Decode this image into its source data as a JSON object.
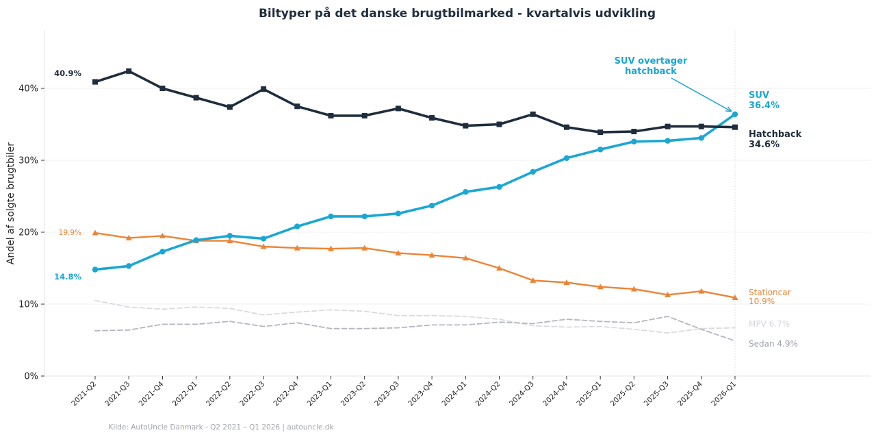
{
  "chart_data": {
    "type": "line",
    "title": "Biltyper på det danske brugtbilmarked - kvartalvis udvikling",
    "xlabel": "",
    "ylabel": "Andel af solgte brugtbiler",
    "ylim": [
      0,
      48
    ],
    "yticks": [
      0,
      10,
      20,
      30,
      40
    ],
    "ytick_labels": [
      "0%",
      "10%",
      "20%",
      "30%",
      "40%"
    ],
    "grid": "horizontal",
    "categories": [
      "2021-Q2",
      "2021-Q3",
      "2021-Q4",
      "2022-Q1",
      "2022-Q2",
      "2022-Q3",
      "2022-Q4",
      "2023-Q1",
      "2023-Q2",
      "2023-Q3",
      "2023-Q4",
      "2024-Q1",
      "2024-Q2",
      "2024-Q3",
      "2024-Q4",
      "2025-Q1",
      "2025-Q2",
      "2025-Q3",
      "2025-Q4",
      "2026-Q1"
    ],
    "series": [
      {
        "name": "Hatchback",
        "color": "#1f2d3d",
        "marker": "square",
        "style": "solid",
        "emphasis": "strong",
        "values": [
          40.9,
          42.4,
          40.0,
          38.7,
          37.4,
          39.9,
          37.5,
          36.2,
          36.2,
          37.2,
          35.9,
          34.8,
          35.0,
          36.4,
          34.6,
          33.9,
          34.0,
          34.7,
          34.7,
          34.6
        ],
        "start_label": "40.9%",
        "end_label": [
          "Hatchback",
          "34.6%"
        ]
      },
      {
        "name": "SUV",
        "color": "#1aa7d4",
        "marker": "circle",
        "style": "solid",
        "emphasis": "strong",
        "values": [
          14.8,
          15.3,
          17.3,
          18.9,
          19.5,
          19.1,
          20.8,
          22.2,
          22.2,
          22.6,
          23.7,
          25.6,
          26.3,
          28.4,
          30.3,
          31.5,
          32.6,
          32.7,
          33.1,
          36.4
        ],
        "start_label": "14.8%",
        "end_label": [
          "SUV",
          "36.4%"
        ]
      },
      {
        "name": "Stationcar",
        "color": "#ec8436",
        "marker": "triangle",
        "style": "solid",
        "emphasis": "medium",
        "values": [
          19.9,
          19.2,
          19.5,
          18.8,
          18.8,
          18.0,
          17.8,
          17.7,
          17.8,
          17.1,
          16.8,
          16.4,
          15.0,
          13.3,
          13.0,
          12.4,
          12.1,
          11.3,
          11.8,
          10.9
        ],
        "start_label": "19.9%",
        "end_label": [
          "Stationcar",
          "10.9%"
        ]
      },
      {
        "name": "MPV",
        "color": "#d9dadf",
        "marker": "none",
        "style": "dashed",
        "emphasis": "faint",
        "values": [
          10.5,
          9.6,
          9.3,
          9.6,
          9.4,
          8.5,
          8.9,
          9.2,
          9.0,
          8.4,
          8.4,
          8.3,
          7.9,
          7.0,
          6.8,
          6.9,
          6.5,
          6.0,
          6.6,
          6.7
        ],
        "end_label": [
          "MPV 6.7%"
        ]
      },
      {
        "name": "Sedan",
        "color": "#b3b5c0",
        "marker": "none",
        "style": "dashed",
        "emphasis": "faint",
        "values": [
          6.3,
          6.4,
          7.2,
          7.2,
          7.6,
          6.9,
          7.4,
          6.6,
          6.6,
          6.7,
          7.1,
          7.1,
          7.5,
          7.3,
          7.9,
          7.6,
          7.4,
          8.3,
          6.5,
          4.9
        ],
        "end_label": [
          "Sedan 4.9%"
        ]
      }
    ],
    "annotations": [
      {
        "text": [
          "SUV overtager",
          "hatchback"
        ],
        "color": "#1aa7d4",
        "points_to": {
          "series": "SUV",
          "category": "2026-Q1"
        }
      }
    ],
    "vline": {
      "category": "2026-Q1",
      "style": "dotted"
    },
    "source": "Kilde: AutoUncle Danmark - Q2 2021 – Q1 2026 | autouncle.dk"
  }
}
